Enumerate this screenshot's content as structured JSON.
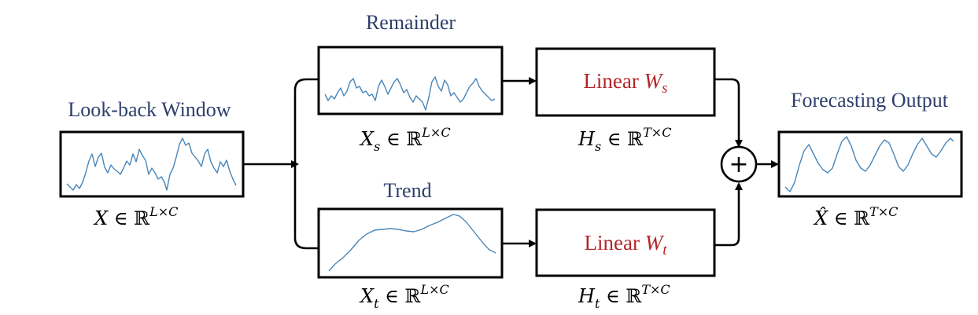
{
  "labels": {
    "lookback": "Look-back Window",
    "remainder": "Remainder",
    "trend": "Trend",
    "forecast": "Forecasting Output"
  },
  "linear": {
    "top": {
      "text": "Linear ",
      "symbol": "W",
      "sub": "s"
    },
    "bottom": {
      "text": "Linear ",
      "symbol": "W",
      "sub": "t"
    }
  },
  "math": {
    "x": {
      "base": "X",
      "sub": "",
      "rel": " ∈ ℝ",
      "sup": "L×C"
    },
    "xs": {
      "base": "X",
      "sub": "s",
      "rel": " ∈ ℝ",
      "sup": "L×C"
    },
    "xt": {
      "base": "X",
      "sub": "t",
      "rel": " ∈ ℝ",
      "sup": "L×C"
    },
    "hs": {
      "base": "H",
      "sub": "s",
      "rel": " ∈ ℝ",
      "sup": "T×C"
    },
    "ht": {
      "base": "H",
      "sub": "t",
      "rel": " ∈ ℝ",
      "sup": "T×C"
    },
    "xhat": {
      "base": "X̂",
      "sub": "",
      "rel": " ∈ ℝ",
      "sup": "T×C"
    }
  },
  "operator": "+",
  "colors": {
    "label_blue": "#2e3f6e",
    "linear_red": "#b3262a",
    "series_line": "#4a86b8"
  }
}
